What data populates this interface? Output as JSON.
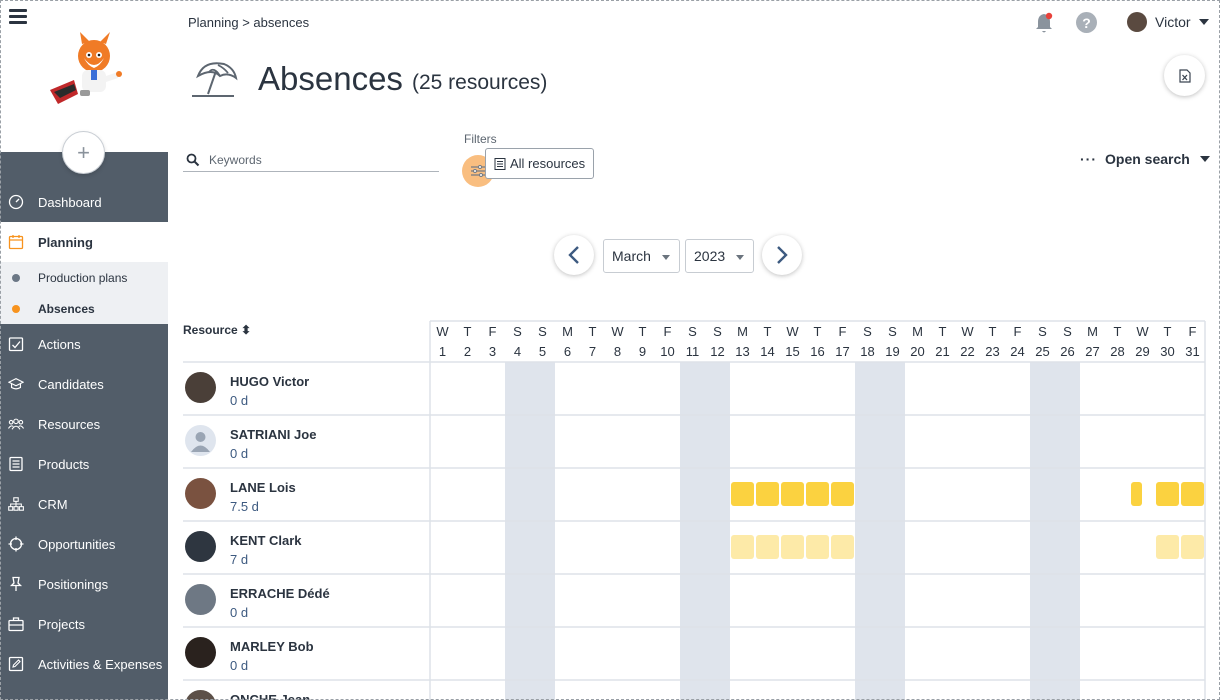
{
  "sidebar": {
    "items": [
      {
        "label": "Dashboard",
        "icon": "dashboard-icon"
      },
      {
        "label": "Planning",
        "icon": "calendar-icon"
      },
      {
        "label": "Actions",
        "icon": "actions-icon"
      },
      {
        "label": "Candidates",
        "icon": "graduation-cap-icon"
      },
      {
        "label": "Resources",
        "icon": "people-icon"
      },
      {
        "label": "Products",
        "icon": "products-icon"
      },
      {
        "label": "CRM",
        "icon": "org-chart-icon"
      },
      {
        "label": "Opportunities",
        "icon": "crosshair-icon"
      },
      {
        "label": "Positionings",
        "icon": "pin-icon"
      },
      {
        "label": "Projects",
        "icon": "briefcase-icon"
      },
      {
        "label": "Activities & Expenses",
        "icon": "edit-icon"
      }
    ],
    "subitems": [
      {
        "label": "Production plans",
        "dot_color": "#6b7785"
      },
      {
        "label": "Absences",
        "dot_color": "#f7931e"
      }
    ],
    "add_label": "+"
  },
  "header": {
    "breadcrumb": "Planning > absences",
    "user_name": "Victor",
    "help_label": "?"
  },
  "page": {
    "title": "Absences",
    "subtitle": "(25 resources)"
  },
  "search": {
    "placeholder": "Keywords",
    "filters_label": "Filters",
    "filter_chip": "All resources",
    "open_search": "Open search",
    "dots": "···"
  },
  "period": {
    "month": "March",
    "year": "2023"
  },
  "grid": {
    "resource_header": "Resource ⬍",
    "days": [
      {
        "w": "W",
        "d": "1"
      },
      {
        "w": "T",
        "d": "2"
      },
      {
        "w": "F",
        "d": "3"
      },
      {
        "w": "S",
        "d": "4"
      },
      {
        "w": "S",
        "d": "5"
      },
      {
        "w": "M",
        "d": "6"
      },
      {
        "w": "T",
        "d": "7"
      },
      {
        "w": "W",
        "d": "8"
      },
      {
        "w": "T",
        "d": "9"
      },
      {
        "w": "F",
        "d": "10"
      },
      {
        "w": "S",
        "d": "11"
      },
      {
        "w": "S",
        "d": "12"
      },
      {
        "w": "M",
        "d": "13"
      },
      {
        "w": "T",
        "d": "14"
      },
      {
        "w": "W",
        "d": "15"
      },
      {
        "w": "T",
        "d": "16"
      },
      {
        "w": "F",
        "d": "17"
      },
      {
        "w": "S",
        "d": "18"
      },
      {
        "w": "S",
        "d": "19"
      },
      {
        "w": "M",
        "d": "20"
      },
      {
        "w": "T",
        "d": "21"
      },
      {
        "w": "W",
        "d": "22"
      },
      {
        "w": "T",
        "d": "23"
      },
      {
        "w": "F",
        "d": "24"
      },
      {
        "w": "S",
        "d": "25"
      },
      {
        "w": "S",
        "d": "26"
      },
      {
        "w": "M",
        "d": "27"
      },
      {
        "w": "T",
        "d": "28"
      },
      {
        "w": "W",
        "d": "29"
      },
      {
        "w": "T",
        "d": "30"
      },
      {
        "w": "F",
        "d": "31"
      }
    ],
    "weekend_days": [
      4,
      5,
      11,
      12,
      18,
      19,
      25,
      26
    ],
    "colors": {
      "weekend": "#dfe4ec",
      "absence_confirmed": "#fbd240",
      "absence_pending": "#fdeaa8",
      "grid_line": "#dde2e8"
    },
    "rows": [
      {
        "name": "HUGO Victor",
        "days": "0 d",
        "avatar_color": "#4a3f38",
        "absences": []
      },
      {
        "name": "SATRIANI Joe",
        "days": "0 d",
        "avatar_color": "#dfe5ee",
        "placeholder": true,
        "absences": []
      },
      {
        "name": "LANE Lois",
        "days": "7.5 d",
        "avatar_color": "#7a5240",
        "absences": [
          {
            "day": 13,
            "portion": 1,
            "state": "confirmed"
          },
          {
            "day": 14,
            "portion": 1,
            "state": "confirmed"
          },
          {
            "day": 15,
            "portion": 1,
            "state": "confirmed"
          },
          {
            "day": 16,
            "portion": 1,
            "state": "confirmed"
          },
          {
            "day": 17,
            "portion": 1,
            "state": "confirmed"
          },
          {
            "day": 29,
            "portion": 0.5,
            "state": "confirmed"
          },
          {
            "day": 30,
            "portion": 1,
            "state": "confirmed"
          },
          {
            "day": 31,
            "portion": 1,
            "state": "confirmed"
          }
        ]
      },
      {
        "name": "KENT Clark",
        "days": "7 d",
        "avatar_color": "#2e3640",
        "absences": [
          {
            "day": 13,
            "portion": 1,
            "state": "pending"
          },
          {
            "day": 14,
            "portion": 1,
            "state": "pending"
          },
          {
            "day": 15,
            "portion": 1,
            "state": "pending"
          },
          {
            "day": 16,
            "portion": 1,
            "state": "pending"
          },
          {
            "day": 17,
            "portion": 1,
            "state": "pending"
          },
          {
            "day": 30,
            "portion": 1,
            "state": "pending"
          },
          {
            "day": 31,
            "portion": 1,
            "state": "pending"
          }
        ]
      },
      {
        "name": "ERRACHE Dédé",
        "days": "0 d",
        "avatar_color": "#6e7884",
        "absences": []
      },
      {
        "name": "MARLEY Bob",
        "days": "0 d",
        "avatar_color": "#2a221e",
        "absences": []
      },
      {
        "name": "ONCHE Jean",
        "days": "",
        "avatar_color": "#5c5048",
        "absences": []
      }
    ]
  }
}
